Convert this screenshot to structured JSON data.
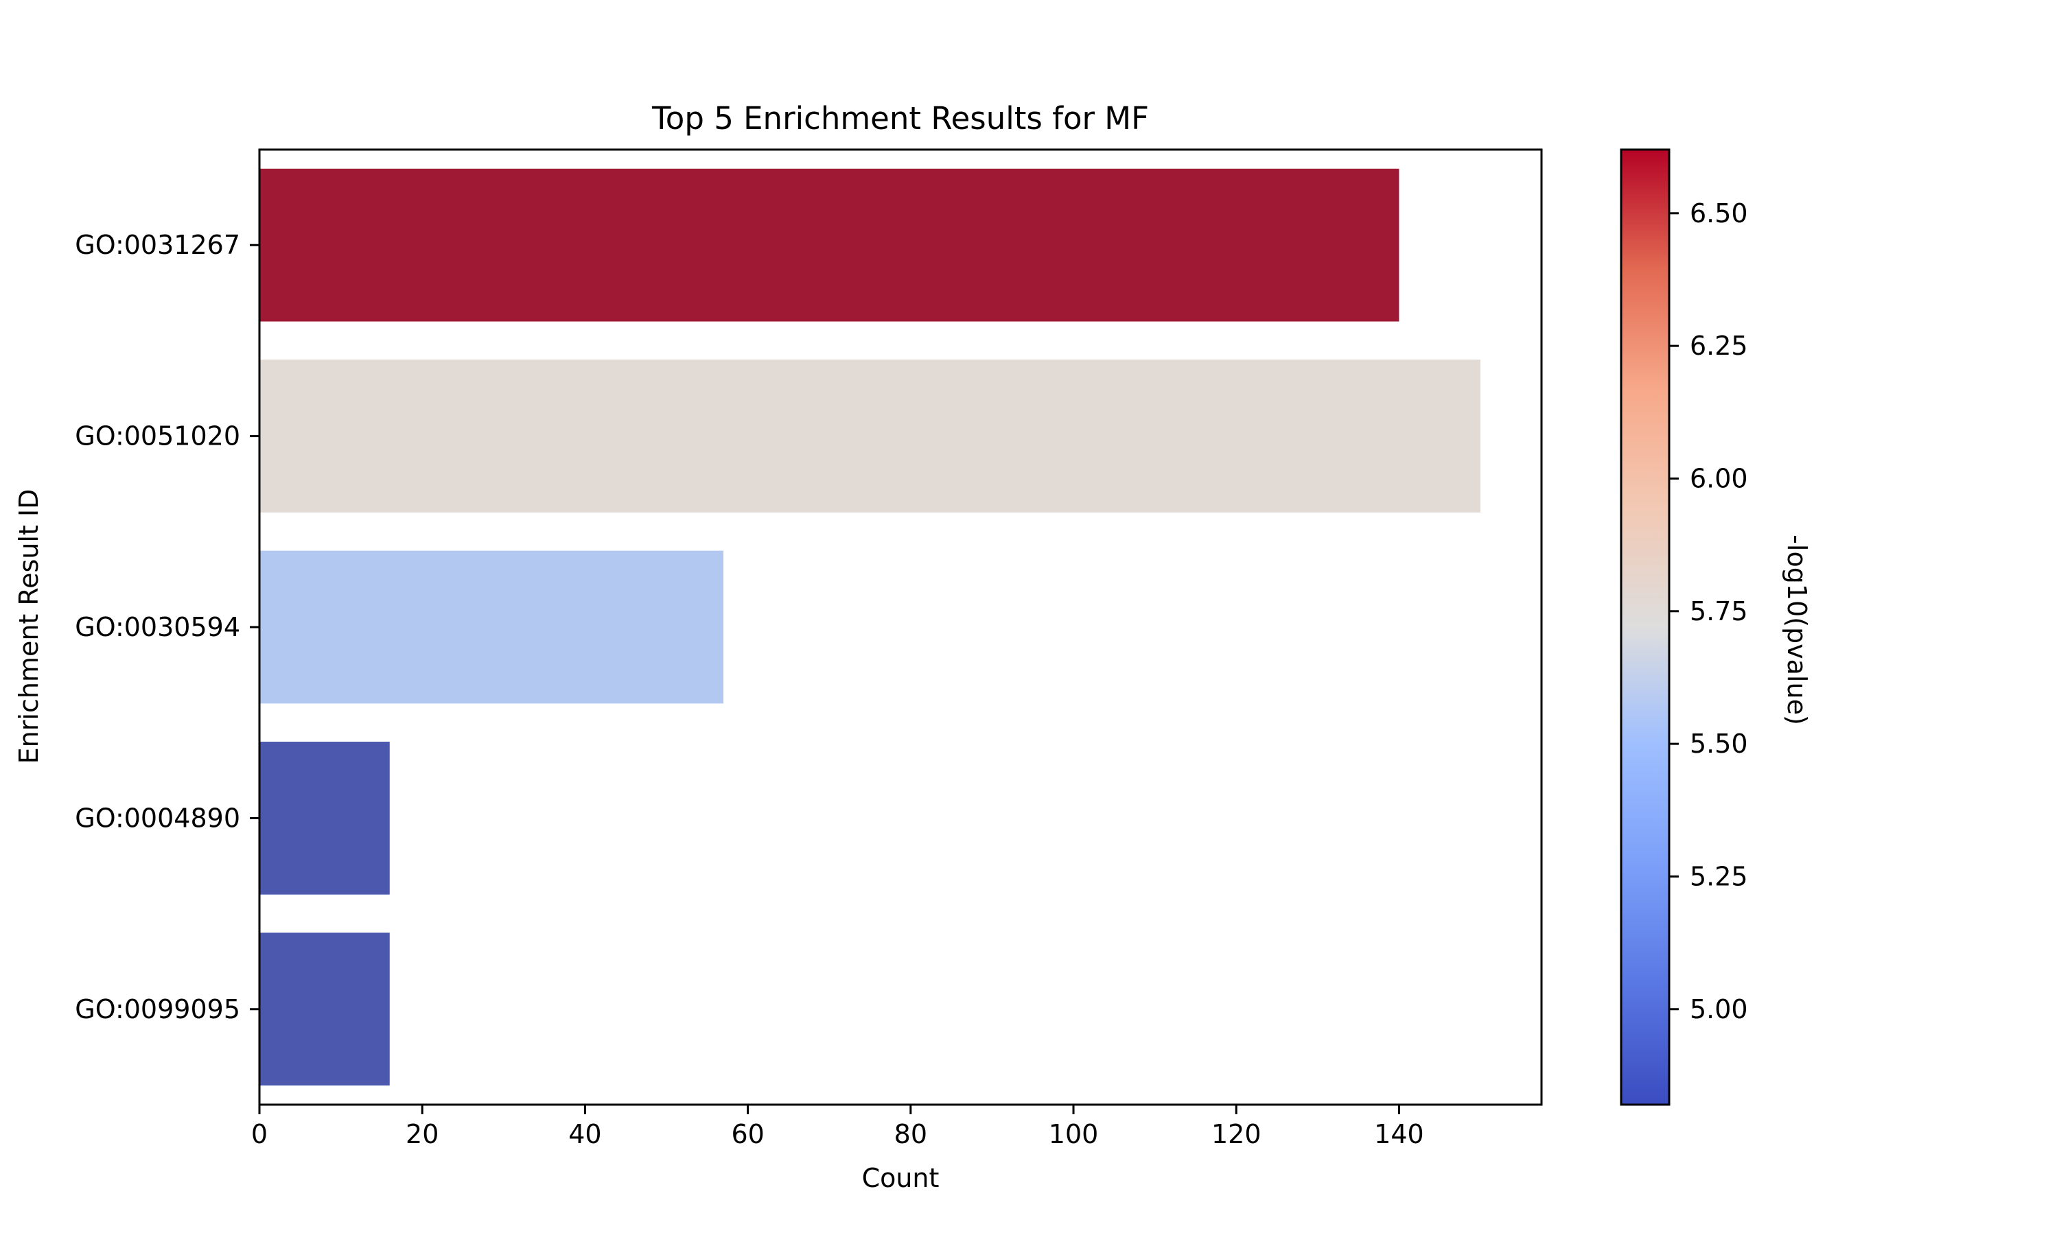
{
  "chart_data": {
    "type": "bar",
    "orientation": "horizontal",
    "title": "Top 5 Enrichment Results for MF",
    "xlabel": "Count",
    "ylabel": "Enrichment Result ID",
    "xlim": [
      0,
      157.5
    ],
    "xticks": [
      0,
      20,
      40,
      60,
      80,
      100,
      120,
      140
    ],
    "xtick_labels": [
      "0",
      "20",
      "40",
      "60",
      "80",
      "100",
      "120",
      "140"
    ],
    "categories": [
      "GO:0031267",
      "GO:0051020",
      "GO:0030594",
      "GO:0004890",
      "GO:0099095"
    ],
    "values": [
      140,
      150,
      57,
      16,
      16
    ],
    "color_values": [
      6.62,
      5.73,
      5.45,
      4.82,
      4.82
    ],
    "bar_colors": [
      "#9f1934",
      "#e2dad5",
      "#b3c8f1",
      "#4b58ae",
      "#4b58ae"
    ],
    "grid": false,
    "legend": "none",
    "colorbar": {
      "label": "-log10(pvalue)",
      "colormap": "coolwarm",
      "range": [
        4.82,
        6.62
      ],
      "ticks": [
        5.0,
        5.25,
        5.5,
        5.75,
        6.0,
        6.25,
        6.5
      ],
      "tick_labels": [
        "5.00",
        "5.25",
        "5.50",
        "5.75",
        "6.00",
        "6.25",
        "6.50"
      ]
    }
  }
}
